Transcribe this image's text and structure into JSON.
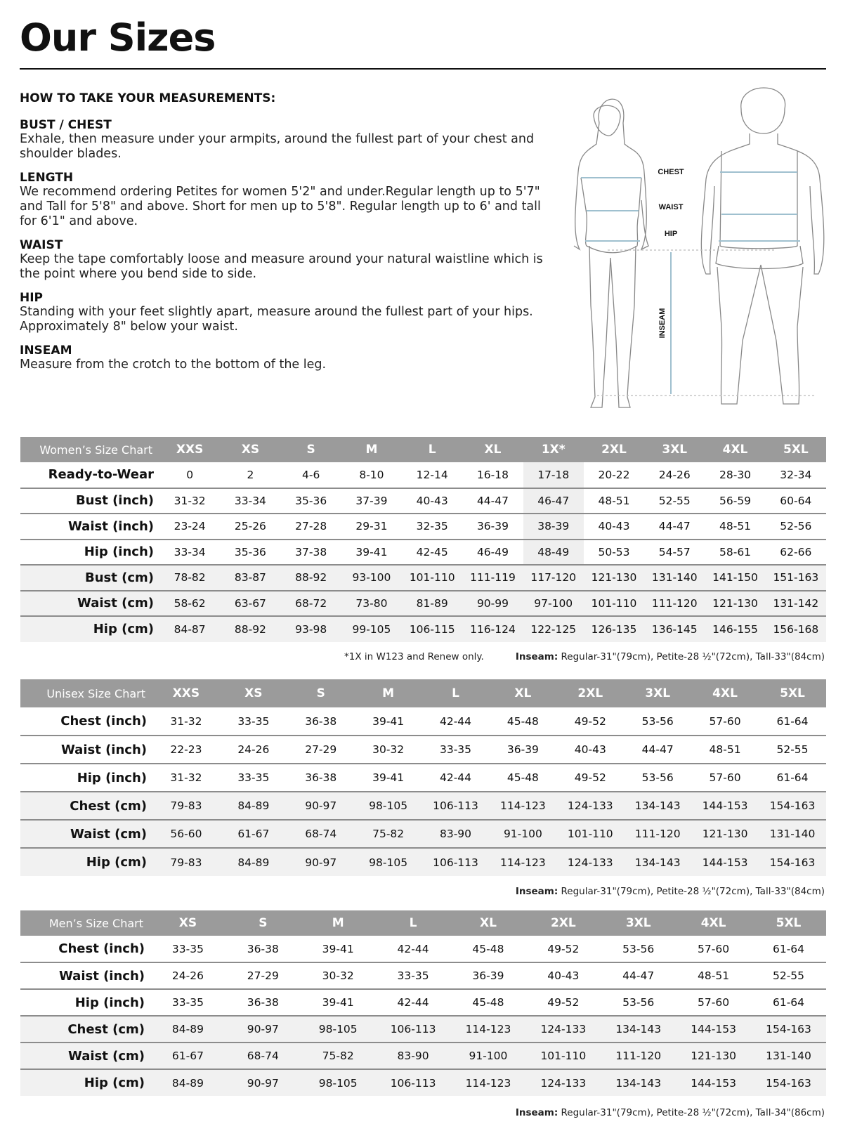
{
  "title": "Our Sizes",
  "howto": {
    "heading": "HOW TO TAKE YOUR MEASUREMENTS:",
    "sections": [
      {
        "title": "BUST / CHEST",
        "text": "Exhale, then measure under your armpits, around the fullest part of your chest and shoulder blades."
      },
      {
        "title": "LENGTH",
        "text": "We recommend ordering Petites for women 5'2\" and under.Regular length up to 5'7\" and Tall for 5'8\" and above. Short for men up to 5'8\". Regular length up to 6' and tall for 6'1\" and above."
      },
      {
        "title": "WAIST",
        "text": "Keep the tape comfortably loose and measure around your natural waistline which is the point where you bend side to side."
      },
      {
        "title": "HIP",
        "text": "Standing with your feet slightly apart, measure around the fullest part of your hips. Approximately 8\" below your waist."
      },
      {
        "title": "INSEAM",
        "text": "Measure from the crotch to the bottom of the leg."
      }
    ]
  },
  "figure": {
    "labels": {
      "chest": "CHEST",
      "waist": "WAIST",
      "hip": "HIP",
      "inseam": "INSEAM"
    },
    "measure_color": "#9fc0cf"
  },
  "women": {
    "title": "Women’s Size Chart",
    "sizes": [
      "XXS",
      "XS",
      "S",
      "M",
      "L",
      "XL",
      "1X*",
      "2XL",
      "3XL",
      "4XL",
      "5XL"
    ],
    "highlight_index": 6,
    "rows": [
      {
        "label": "Ready-to-Wear",
        "values": [
          "0",
          "2",
          "4-6",
          "8-10",
          "12-14",
          "16-18",
          "17-18",
          "20-22",
          "24-26",
          "28-30",
          "32-34"
        ]
      },
      {
        "label": "Bust (inch)",
        "values": [
          "31-32",
          "33-34",
          "35-36",
          "37-39",
          "40-43",
          "44-47",
          "46-47",
          "48-51",
          "52-55",
          "56-59",
          "60-64"
        ]
      },
      {
        "label": "Waist (inch)",
        "values": [
          "23-24",
          "25-26",
          "27-28",
          "29-31",
          "32-35",
          "36-39",
          "38-39",
          "40-43",
          "44-47",
          "48-51",
          "52-56"
        ]
      },
      {
        "label": "Hip (inch)",
        "values": [
          "33-34",
          "35-36",
          "37-38",
          "39-41",
          "42-45",
          "46-49",
          "48-49",
          "50-53",
          "54-57",
          "58-61",
          "62-66"
        ]
      },
      {
        "label": "Bust (cm)",
        "values": [
          "78-82",
          "83-87",
          "88-92",
          "93-100",
          "101-110",
          "111-119",
          "117-120",
          "121-130",
          "131-140",
          "141-150",
          "151-163"
        ]
      },
      {
        "label": "Waist (cm)",
        "values": [
          "58-62",
          "63-67",
          "68-72",
          "73-80",
          "81-89",
          "90-99",
          "97-100",
          "101-110",
          "111-120",
          "121-130",
          "131-142"
        ]
      },
      {
        "label": "Hip (cm)",
        "values": [
          "84-87",
          "88-92",
          "93-98",
          "99-105",
          "106-115",
          "116-124",
          "122-125",
          "126-135",
          "136-145",
          "146-155",
          "156-168"
        ]
      }
    ],
    "footnote": "*1X in W123 and Renew only.",
    "inseam_label": "Inseam:",
    "inseam": " Regular-31\"(79cm), Petite-28 ½\"(72cm), Tall-33\"(84cm)"
  },
  "unisex": {
    "title": "Unisex Size Chart",
    "sizes": [
      "XXS",
      "XS",
      "S",
      "M",
      "L",
      "XL",
      "2XL",
      "3XL",
      "4XL",
      "5XL"
    ],
    "rows": [
      {
        "label": "Chest (inch)",
        "values": [
          "31-32",
          "33-35",
          "36-38",
          "39-41",
          "42-44",
          "45-48",
          "49-52",
          "53-56",
          "57-60",
          "61-64"
        ]
      },
      {
        "label": "Waist (inch)",
        "values": [
          "22-23",
          "24-26",
          "27-29",
          "30-32",
          "33-35",
          "36-39",
          "40-43",
          "44-47",
          "48-51",
          "52-55"
        ]
      },
      {
        "label": "Hip (inch)",
        "values": [
          "31-32",
          "33-35",
          "36-38",
          "39-41",
          "42-44",
          "45-48",
          "49-52",
          "53-56",
          "57-60",
          "61-64"
        ]
      },
      {
        "label": "Chest (cm)",
        "values": [
          "79-83",
          "84-89",
          "90-97",
          "98-105",
          "106-113",
          "114-123",
          "124-133",
          "134-143",
          "144-153",
          "154-163"
        ]
      },
      {
        "label": "Waist (cm)",
        "values": [
          "56-60",
          "61-67",
          "68-74",
          "75-82",
          "83-90",
          "91-100",
          "101-110",
          "111-120",
          "121-130",
          "131-140"
        ]
      },
      {
        "label": "Hip (cm)",
        "values": [
          "79-83",
          "84-89",
          "90-97",
          "98-105",
          "106-113",
          "114-123",
          "124-133",
          "134-143",
          "144-153",
          "154-163"
        ]
      }
    ],
    "inseam_label": "Inseam:",
    "inseam": " Regular-31\"(79cm), Petite-28 ½\"(72cm), Tall-33\"(84cm)"
  },
  "men": {
    "title": "Men’s Size Chart",
    "sizes": [
      "XS",
      "S",
      "M",
      "L",
      "XL",
      "2XL",
      "3XL",
      "4XL",
      "5XL"
    ],
    "rows": [
      {
        "label": "Chest (inch)",
        "values": [
          "33-35",
          "36-38",
          "39-41",
          "42-44",
          "45-48",
          "49-52",
          "53-56",
          "57-60",
          "61-64"
        ]
      },
      {
        "label": "Waist (inch)",
        "values": [
          "24-26",
          "27-29",
          "30-32",
          "33-35",
          "36-39",
          "40-43",
          "44-47",
          "48-51",
          "52-55"
        ]
      },
      {
        "label": "Hip (inch)",
        "values": [
          "33-35",
          "36-38",
          "39-41",
          "42-44",
          "45-48",
          "49-52",
          "53-56",
          "57-60",
          "61-64"
        ]
      },
      {
        "label": "Chest (cm)",
        "values": [
          "84-89",
          "90-97",
          "98-105",
          "106-113",
          "114-123",
          "124-133",
          "134-143",
          "144-153",
          "154-163"
        ]
      },
      {
        "label": "Waist (cm)",
        "values": [
          "61-67",
          "68-74",
          "75-82",
          "83-90",
          "91-100",
          "101-110",
          "111-120",
          "121-130",
          "131-140"
        ]
      },
      {
        "label": "Hip (cm)",
        "values": [
          "84-89",
          "90-97",
          "98-105",
          "106-113",
          "114-123",
          "124-133",
          "134-143",
          "144-153",
          "154-163"
        ]
      }
    ],
    "inseam_label": "Inseam:",
    "inseam": " Regular-31\"(79cm), Petite-28 ½\"(72cm), Tall-34\"(86cm)"
  },
  "colors": {
    "header_bg": "#9b9b9b",
    "cm_row_bg": "#f1f1f1",
    "measure_line": "#9fc0cf"
  }
}
